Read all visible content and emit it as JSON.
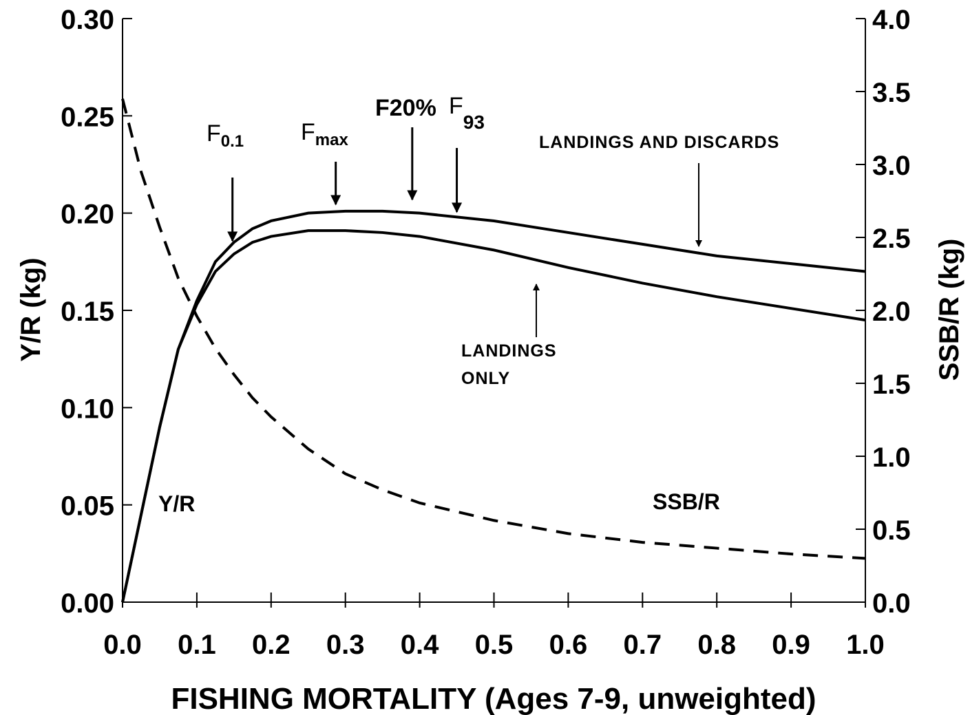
{
  "chart_data": {
    "type": "line",
    "xlabel": "FISHING MORTALITY (Ages 7-9, unweighted)",
    "ylabel": "Y/R (kg)",
    "y2label": "SSB/R (kg)",
    "x": [
      0,
      0.025,
      0.05,
      0.075,
      0.1,
      0.125,
      0.15,
      0.175,
      0.2,
      0.25,
      0.3,
      0.35,
      0.4,
      0.5,
      0.6,
      0.7,
      0.8,
      0.9,
      1.0
    ],
    "series": [
      {
        "color": "#000000",
        "style": "solid",
        "values": [
          0,
          0.045,
          0.09,
          0.13,
          0.155,
          0.175,
          0.185,
          0.192,
          0.196,
          0.2,
          0.201,
          0.201,
          0.2,
          0.196,
          0.19,
          0.184,
          0.178,
          0.174,
          0.17
        ]
      },
      {
        "color": "#000000",
        "style": "solid",
        "values": [
          0,
          0.045,
          0.09,
          0.13,
          0.153,
          0.17,
          0.179,
          0.185,
          0.188,
          0.191,
          0.191,
          0.19,
          0.188,
          0.181,
          0.172,
          0.164,
          0.157,
          0.151,
          0.145
        ]
      },
      {
        "color": "#000000",
        "style": "dashed",
        "axis": "y2",
        "values": [
          3.45,
          2.95,
          2.57,
          2.22,
          1.96,
          1.74,
          1.56,
          1.4,
          1.27,
          1.05,
          0.88,
          0.77,
          0.68,
          0.56,
          0.47,
          0.41,
          0.37,
          0.33,
          0.3
        ]
      }
    ],
    "xlim": [
      0,
      1.0
    ],
    "xticks": [
      {
        "value": 0,
        "label": "0.0"
      },
      0.1,
      0.2,
      0.3,
      0.4,
      0.5,
      0.6,
      0.7,
      0.8,
      0.9,
      {
        "value": 1,
        "label": "1.0"
      }
    ],
    "ylim": [
      0,
      0.3
    ],
    "yticks": [
      {
        "value": 0,
        "label": "0.00"
      },
      0.05,
      {
        "value": 0.1,
        "label": "0.10"
      },
      0.15,
      {
        "value": 0.2,
        "label": "0.20"
      },
      0.25,
      {
        "value": 0.3,
        "label": "0.30"
      }
    ],
    "y2lim": [
      0,
      4.0
    ],
    "y2ticks": [
      {
        "value": 0,
        "label": "0.0"
      },
      0.5,
      {
        "value": 1,
        "label": "1.0"
      },
      1.5,
      {
        "value": 2,
        "label": "2.0"
      },
      2.5,
      {
        "value": 3,
        "label": "3.0"
      },
      3.5,
      {
        "value": 4,
        "label": "4.0"
      }
    ],
    "reference_points": [
      {
        "text": "F",
        "sub": "0.1",
        "x": 0.148
      },
      {
        "text": "F",
        "sub": "max",
        "x": 0.287
      },
      {
        "text": "F20%",
        "x": 0.39
      },
      {
        "text": "F",
        "sub": "93",
        "x": 0.45
      }
    ],
    "annotations": [
      "LANDINGS AND DISCARDS",
      "LANDINGS",
      "ONLY",
      "Y/R",
      "SSB/R"
    ]
  }
}
